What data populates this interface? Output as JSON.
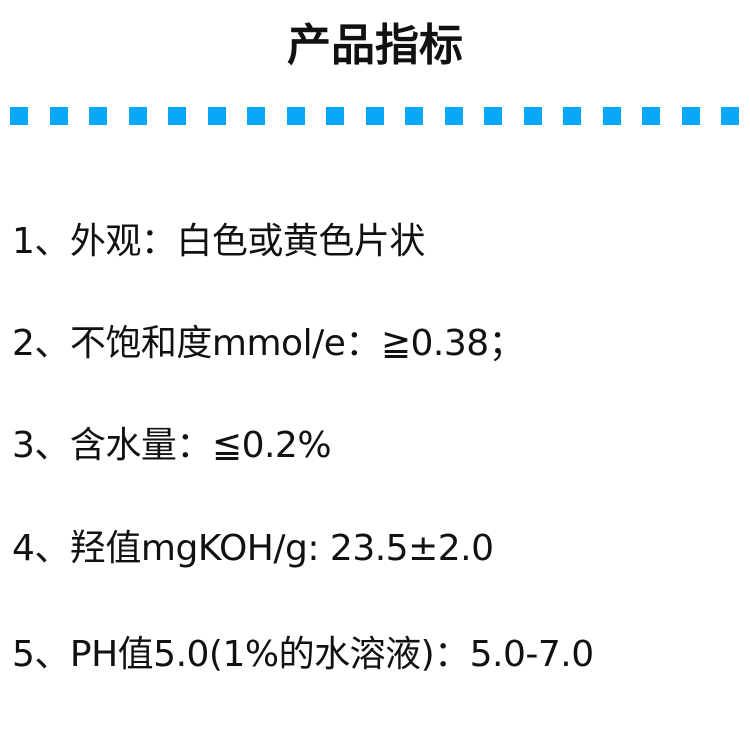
{
  "title": "产品指标",
  "accent_color": "#08a8f8",
  "items": [
    "1、外观：白色或黄色片状",
    "2、不饱和度mmol/e：≧0.38；",
    "3、含水量：≦0.2%",
    "4、羟值mgKOH/g: 23.5±2.0",
    "5、PH值5.0(1%的水溶液)：5.0-7.0"
  ]
}
